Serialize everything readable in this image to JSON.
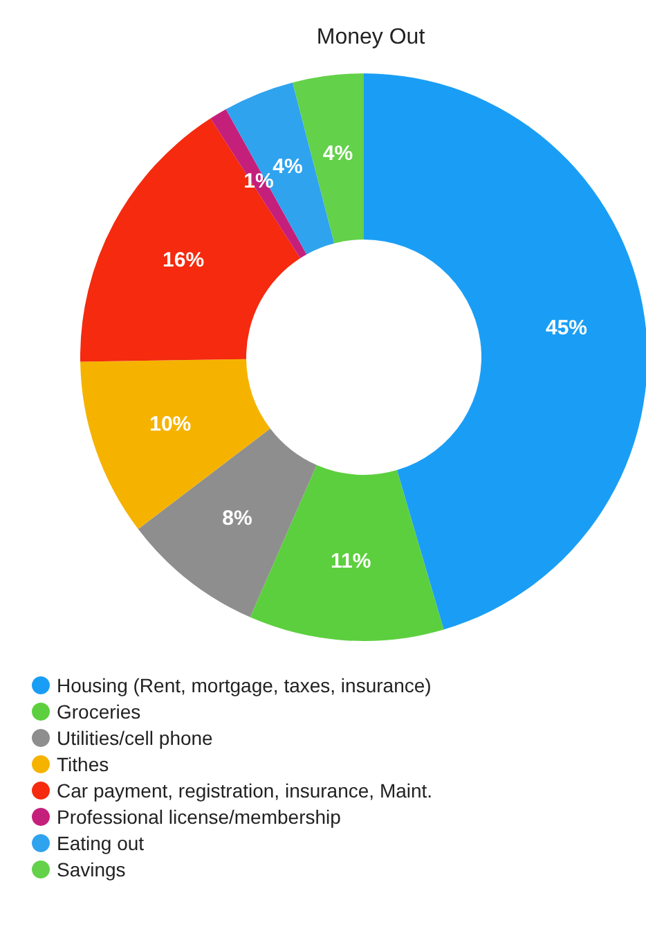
{
  "chart_data": {
    "type": "donut",
    "title": "Money Out",
    "categories": [
      "Housing (Rent, mortgage, taxes, insurance)",
      "Groceries",
      "Utilities/cell phone",
      "Tithes",
      "Car payment, registration, insurance, Maint.",
      "Professional license/membership",
      "Eating out",
      "Savings"
    ],
    "values": [
      45,
      11,
      8,
      10,
      16,
      1,
      4,
      4
    ],
    "colors": [
      "#1a9ef5",
      "#5ccf3e",
      "#8e8e8e",
      "#f5b300",
      "#f52a0e",
      "#c51f7c",
      "#2fa3ee",
      "#63d14a"
    ],
    "value_labels": [
      "45%",
      "11%",
      "8%",
      "10%",
      "16%",
      "1%",
      "4%",
      "4%"
    ],
    "legend": "bottom"
  }
}
